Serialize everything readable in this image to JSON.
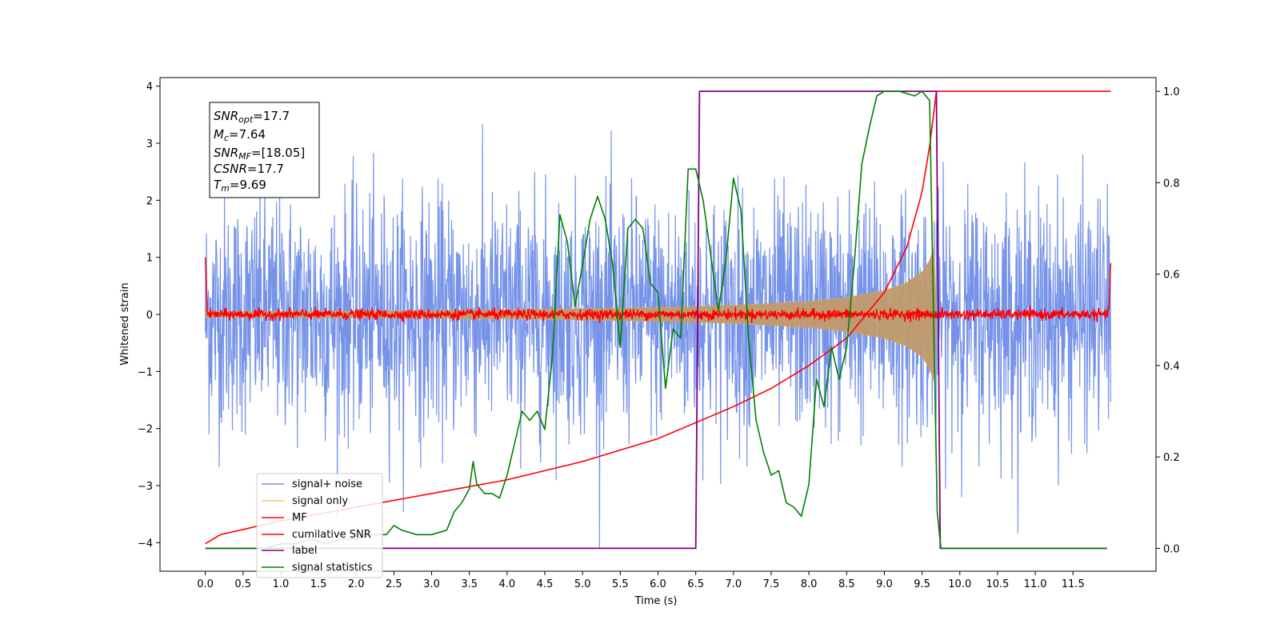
{
  "chart_data": {
    "type": "line",
    "xlabel": "Time (s)",
    "ylabel": "Whitened strain",
    "xlim": [
      -0.6,
      12.6
    ],
    "ylim_left": [
      -4.5,
      4.15
    ],
    "ylim_right": [
      -0.05,
      1.03
    ],
    "x_ticks": [
      0.0,
      0.5,
      1.0,
      1.5,
      2.0,
      2.5,
      3.0,
      3.5,
      4.0,
      4.5,
      5.0,
      5.5,
      6.0,
      6.5,
      7.0,
      7.5,
      8.0,
      8.5,
      9.0,
      9.5,
      10.0,
      10.5,
      11.0,
      11.5
    ],
    "x_tick_labels": [
      "0.0",
      "0.5",
      "1.0",
      "1.5",
      "2.0",
      "2.5",
      "3.0",
      "3.5",
      "4.0",
      "4.5",
      "5.0",
      "5.5",
      "6.0",
      "6.5",
      "7.0",
      "7.5",
      "8.0",
      "8.5",
      "9.0",
      "9.5",
      "10.0",
      "10.5",
      "11.0",
      "11.5"
    ],
    "y_left_ticks": [
      4,
      3,
      2,
      1,
      0,
      -1,
      -2,
      -3,
      -4
    ],
    "y_left_tick_labels": [
      "4",
      "3",
      "2",
      "1",
      "0",
      "−1",
      "−2",
      "−3",
      "−4"
    ],
    "y_right_ticks": [
      1.0,
      0.8,
      0.6,
      0.4,
      0.2,
      0.0
    ],
    "y_right_tick_labels": [
      "1.0",
      "0.8",
      "0.6",
      "0.4",
      "0.2",
      "0.0"
    ],
    "grid": false,
    "legend_placement": "lower-left",
    "info_box": {
      "snr_opt": {
        "sym": "SNR",
        "sub": "opt",
        "val": "=17.7"
      },
      "mc": {
        "sym": "M",
        "sub": "c",
        "val": "=7.64"
      },
      "snr_mf": {
        "sym": "SNR",
        "sub": "MF",
        "val": "=[18.05]"
      },
      "csnr": {
        "sym": "CSNR",
        "sub": "",
        "val": "=17.7"
      },
      "tm": {
        "sym": "T",
        "sub": "m",
        "val": "=9.69"
      }
    },
    "series": [
      {
        "name": "signal+ noise",
        "color": "#4169e1",
        "axis": "left",
        "description": "noise amplitude ~1 sigma, peaks to about ±3.8, from 0.0 to 12.0 s"
      },
      {
        "name": "signal only",
        "color": "#f5b041",
        "axis": "left",
        "envelope": [
          [
            0.0,
            0.05
          ],
          [
            2.0,
            0.06
          ],
          [
            4.0,
            0.08
          ],
          [
            6.0,
            0.12
          ],
          [
            7.0,
            0.16
          ],
          [
            8.0,
            0.23
          ],
          [
            8.5,
            0.3
          ],
          [
            9.0,
            0.42
          ],
          [
            9.3,
            0.56
          ],
          [
            9.5,
            0.75
          ],
          [
            9.6,
            0.95
          ],
          [
            9.66,
            1.2
          ],
          [
            9.69,
            0.0
          ]
        ]
      },
      {
        "name": "MF",
        "color": "#ff0000",
        "axis": "left",
        "description": "near zero with small noise, spikes to ~1.0 at 0.0 and ~0.9 at 12.0"
      },
      {
        "name": "cumilative SNR",
        "color": "#ff0000",
        "axis": "right",
        "points": [
          [
            0.0,
            0.01
          ],
          [
            0.2,
            0.03
          ],
          [
            1.0,
            0.06
          ],
          [
            2.0,
            0.09
          ],
          [
            3.0,
            0.12
          ],
          [
            4.0,
            0.15
          ],
          [
            5.0,
            0.19
          ],
          [
            6.0,
            0.24
          ],
          [
            7.0,
            0.31
          ],
          [
            7.5,
            0.35
          ],
          [
            8.0,
            0.4
          ],
          [
            8.5,
            0.46
          ],
          [
            9.0,
            0.56
          ],
          [
            9.3,
            0.66
          ],
          [
            9.5,
            0.78
          ],
          [
            9.6,
            0.88
          ],
          [
            9.69,
            1.0
          ],
          [
            12.0,
            1.0
          ]
        ]
      },
      {
        "name": "label",
        "color": "#800080",
        "axis": "right",
        "points": [
          [
            0.0,
            0.0
          ],
          [
            6.5,
            0.0
          ],
          [
            6.55,
            1.0
          ],
          [
            9.69,
            1.0
          ],
          [
            9.74,
            0.0
          ],
          [
            11.95,
            0.0
          ]
        ]
      },
      {
        "name": "signal statistics",
        "color": "#008000",
        "axis": "right",
        "points": [
          [
            0.0,
            0.0
          ],
          [
            0.3,
            0.0
          ],
          [
            0.5,
            0.0
          ],
          [
            0.8,
            0.0
          ],
          [
            1.0,
            0.01
          ],
          [
            1.2,
            0.01
          ],
          [
            1.4,
            0.02
          ],
          [
            1.6,
            0.01
          ],
          [
            1.8,
            0.02
          ],
          [
            2.0,
            0.02
          ],
          [
            2.2,
            0.03
          ],
          [
            2.4,
            0.03
          ],
          [
            2.5,
            0.05
          ],
          [
            2.6,
            0.04
          ],
          [
            2.8,
            0.03
          ],
          [
            3.0,
            0.03
          ],
          [
            3.2,
            0.04
          ],
          [
            3.3,
            0.08
          ],
          [
            3.4,
            0.1
          ],
          [
            3.5,
            0.13
          ],
          [
            3.55,
            0.19
          ],
          [
            3.6,
            0.14
          ],
          [
            3.7,
            0.12
          ],
          [
            3.8,
            0.12
          ],
          [
            3.9,
            0.11
          ],
          [
            4.0,
            0.16
          ],
          [
            4.1,
            0.23
          ],
          [
            4.2,
            0.3
          ],
          [
            4.3,
            0.28
          ],
          [
            4.4,
            0.3
          ],
          [
            4.5,
            0.26
          ],
          [
            4.6,
            0.42
          ],
          [
            4.7,
            0.73
          ],
          [
            4.8,
            0.67
          ],
          [
            4.9,
            0.53
          ],
          [
            5.0,
            0.62
          ],
          [
            5.1,
            0.72
          ],
          [
            5.2,
            0.77
          ],
          [
            5.3,
            0.72
          ],
          [
            5.4,
            0.62
          ],
          [
            5.5,
            0.44
          ],
          [
            5.6,
            0.7
          ],
          [
            5.7,
            0.72
          ],
          [
            5.8,
            0.7
          ],
          [
            5.9,
            0.58
          ],
          [
            6.0,
            0.56
          ],
          [
            6.1,
            0.35
          ],
          [
            6.2,
            0.48
          ],
          [
            6.3,
            0.46
          ],
          [
            6.4,
            0.83
          ],
          [
            6.5,
            0.83
          ],
          [
            6.6,
            0.76
          ],
          [
            6.7,
            0.64
          ],
          [
            6.8,
            0.52
          ],
          [
            6.9,
            0.63
          ],
          [
            7.0,
            0.81
          ],
          [
            7.1,
            0.74
          ],
          [
            7.2,
            0.46
          ],
          [
            7.3,
            0.28
          ],
          [
            7.4,
            0.21
          ],
          [
            7.5,
            0.16
          ],
          [
            7.6,
            0.17
          ],
          [
            7.7,
            0.1
          ],
          [
            7.8,
            0.09
          ],
          [
            7.9,
            0.07
          ],
          [
            8.0,
            0.14
          ],
          [
            8.1,
            0.37
          ],
          [
            8.2,
            0.31
          ],
          [
            8.3,
            0.44
          ],
          [
            8.4,
            0.37
          ],
          [
            8.5,
            0.44
          ],
          [
            8.6,
            0.62
          ],
          [
            8.7,
            0.84
          ],
          [
            8.8,
            0.92
          ],
          [
            8.9,
            0.99
          ],
          [
            9.0,
            1.0
          ],
          [
            9.2,
            1.0
          ],
          [
            9.4,
            0.99
          ],
          [
            9.5,
            1.0
          ],
          [
            9.6,
            0.98
          ],
          [
            9.7,
            0.08
          ],
          [
            9.75,
            0.0
          ],
          [
            11.95,
            0.0
          ]
        ]
      }
    ]
  }
}
